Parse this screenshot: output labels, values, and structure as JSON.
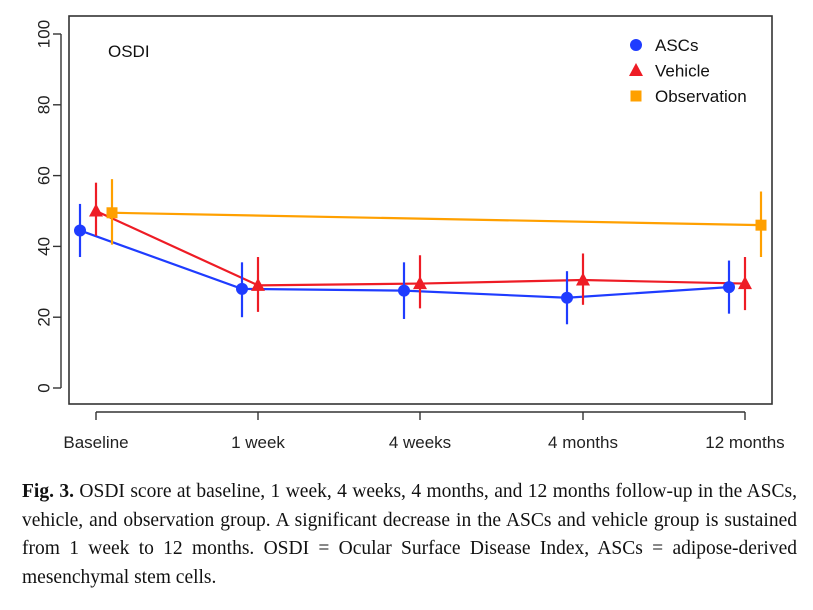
{
  "chart_data": {
    "type": "line",
    "title": "",
    "panel_label": "OSDI",
    "xlabel": "",
    "ylabel": "",
    "categories": [
      "Baseline",
      "1 week",
      "4 weeks",
      "4 months",
      "12 months"
    ],
    "ylim": [
      0,
      100
    ],
    "yticks": [
      0,
      20,
      40,
      60,
      80,
      100
    ],
    "legend_position": "top-right",
    "grid": false,
    "series": [
      {
        "name": "ASCs",
        "marker": "circle",
        "color": "#1f3cff",
        "values": [
          44.5,
          28,
          27.5,
          25.5,
          28.5
        ],
        "lower": [
          37,
          20,
          19.5,
          18,
          21
        ],
        "upper": [
          52,
          35.5,
          35.5,
          33,
          36
        ]
      },
      {
        "name": "Vehicle",
        "marker": "triangle",
        "color": "#ee1c25",
        "values": [
          50,
          29,
          29.5,
          30.5,
          29.5
        ],
        "lower": [
          43,
          21.5,
          22.5,
          23.5,
          22
        ],
        "upper": [
          58,
          37,
          37.5,
          38,
          37
        ]
      },
      {
        "name": "Observation",
        "marker": "square",
        "color": "#ffa000",
        "values": [
          49.5,
          null,
          null,
          null,
          46
        ],
        "lower": [
          40.5,
          null,
          null,
          null,
          37
        ],
        "upper": [
          59,
          null,
          null,
          null,
          55.5
        ]
      }
    ]
  },
  "caption": {
    "label": "Fig. 3.",
    "text": "OSDI score at baseline, 1 week, 4 weeks, 4 months, and 12 months follow-up in the ASCs, vehicle, and observation group. A significant decrease in the ASCs and vehicle group is sustained from 1 week to 12 months. OSDI = Ocular Surface Disease Index, ASCs = adipose-derived mesenchymal stem cells."
  }
}
